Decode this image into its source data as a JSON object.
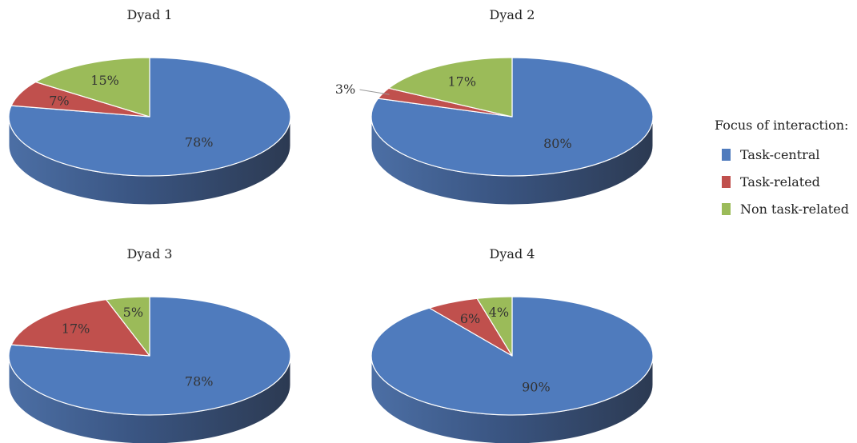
{
  "legend": {
    "title": "Focus of interaction:",
    "items": [
      {
        "label": "Task-central",
        "color": "#4f7bbd"
      },
      {
        "label": "Task-related",
        "color": "#c0504d"
      },
      {
        "label": "Non task-related",
        "color": "#9bbb59"
      }
    ]
  },
  "chart_data": [
    {
      "type": "pie",
      "title": "Dyad 1",
      "categories": [
        "Task-central",
        "Task-related",
        "Non task-related"
      ],
      "values": [
        78,
        7,
        15
      ],
      "labels": [
        "78%",
        "7%",
        "15%"
      ]
    },
    {
      "type": "pie",
      "title": "Dyad 2",
      "categories": [
        "Task-central",
        "Task-related",
        "Non task-related"
      ],
      "values": [
        80,
        3,
        17
      ],
      "labels": [
        "80%",
        "3%",
        "17%"
      ]
    },
    {
      "type": "pie",
      "title": "Dyad 3",
      "categories": [
        "Task-central",
        "Task-related",
        "Non task-related"
      ],
      "values": [
        78,
        17,
        5
      ],
      "labels": [
        "78%",
        "17%",
        "5%"
      ]
    },
    {
      "type": "pie",
      "title": "Dyad 4",
      "categories": [
        "Task-central",
        "Task-related",
        "Non task-related"
      ],
      "values": [
        90,
        6,
        4
      ],
      "labels": [
        "90%",
        "6%",
        "4%"
      ]
    }
  ]
}
